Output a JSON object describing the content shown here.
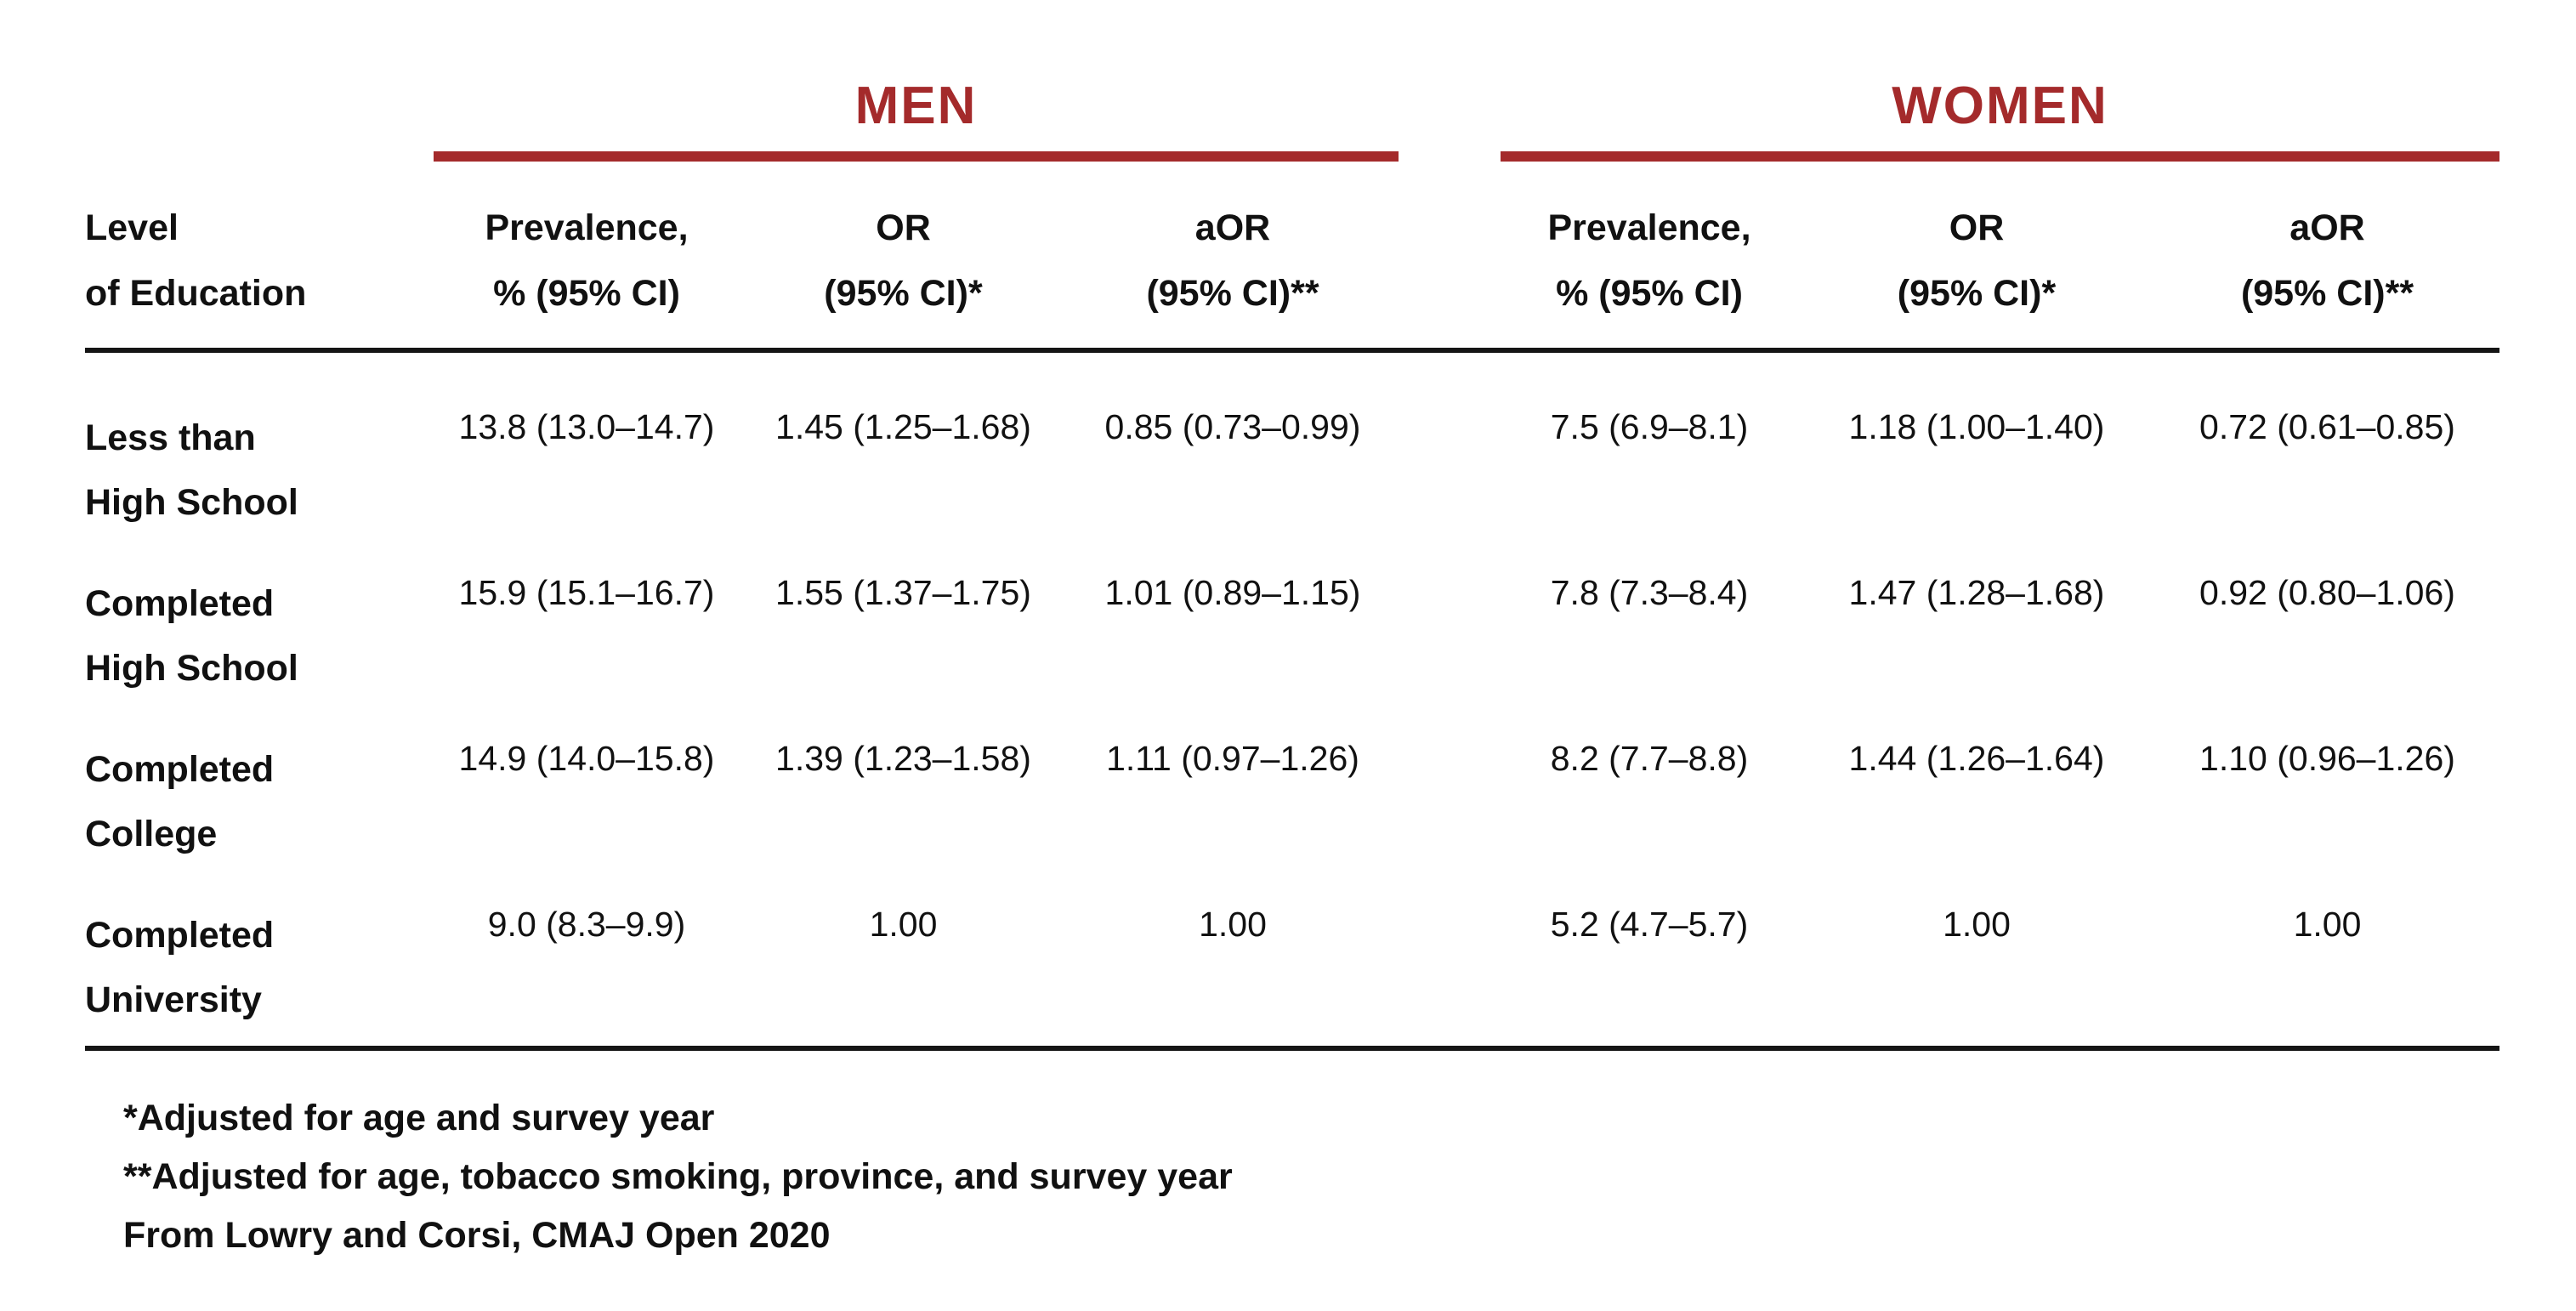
{
  "colors": {
    "accent": "#A42A2B",
    "text": "#111111",
    "background": "#ffffff"
  },
  "chart_data": {
    "type": "table",
    "groups": [
      {
        "label": "MEN"
      },
      {
        "label": "WOMEN"
      }
    ],
    "stub_header": {
      "line1": "Level",
      "line2": "of Education"
    },
    "sub_headers": {
      "prev": {
        "line1": "Prevalence,",
        "line2": "% (95% CI)"
      },
      "or": {
        "line1": "OR",
        "line2": "(95% CI)*"
      },
      "aor": {
        "line1": "aOR",
        "line2": "(95% CI)**"
      }
    },
    "rows": [
      {
        "label": {
          "line1": "Less than",
          "line2": "High School"
        },
        "men": {
          "prev": "13.8 (13.0–14.7)",
          "or": "1.45 (1.25–1.68)",
          "aor": "0.85 (0.73–0.99)"
        },
        "women": {
          "prev": "7.5 (6.9–8.1)",
          "or": "1.18 (1.00–1.40)",
          "aor": "0.72 (0.61–0.85)"
        }
      },
      {
        "label": {
          "line1": "Completed",
          "line2": "High School"
        },
        "men": {
          "prev": "15.9 (15.1–16.7)",
          "or": "1.55 (1.37–1.75)",
          "aor": "1.01 (0.89–1.15)"
        },
        "women": {
          "prev": "7.8 (7.3–8.4)",
          "or": "1.47 (1.28–1.68)",
          "aor": "0.92 (0.80–1.06)"
        }
      },
      {
        "label": {
          "line1": "Completed",
          "line2": "College"
        },
        "men": {
          "prev": "14.9 (14.0–15.8)",
          "or": "1.39 (1.23–1.58)",
          "aor": "1.11 (0.97–1.26)"
        },
        "women": {
          "prev": "8.2 (7.7–8.8)",
          "or": "1.44 (1.26–1.64)",
          "aor": "1.10 (0.96–1.26)"
        }
      },
      {
        "label": {
          "line1": "Completed",
          "line2": "University"
        },
        "men": {
          "prev": "9.0 (8.3–9.9)",
          "or": "1.00",
          "aor": "1.00"
        },
        "women": {
          "prev": "5.2 (4.7–5.7)",
          "or": "1.00",
          "aor": "1.00"
        }
      }
    ],
    "footnotes": [
      "*Adjusted for age and survey year",
      "**Adjusted for age, tobacco smoking, province, and survey year",
      "From Lowry and Corsi, CMAJ Open 2020"
    ]
  }
}
